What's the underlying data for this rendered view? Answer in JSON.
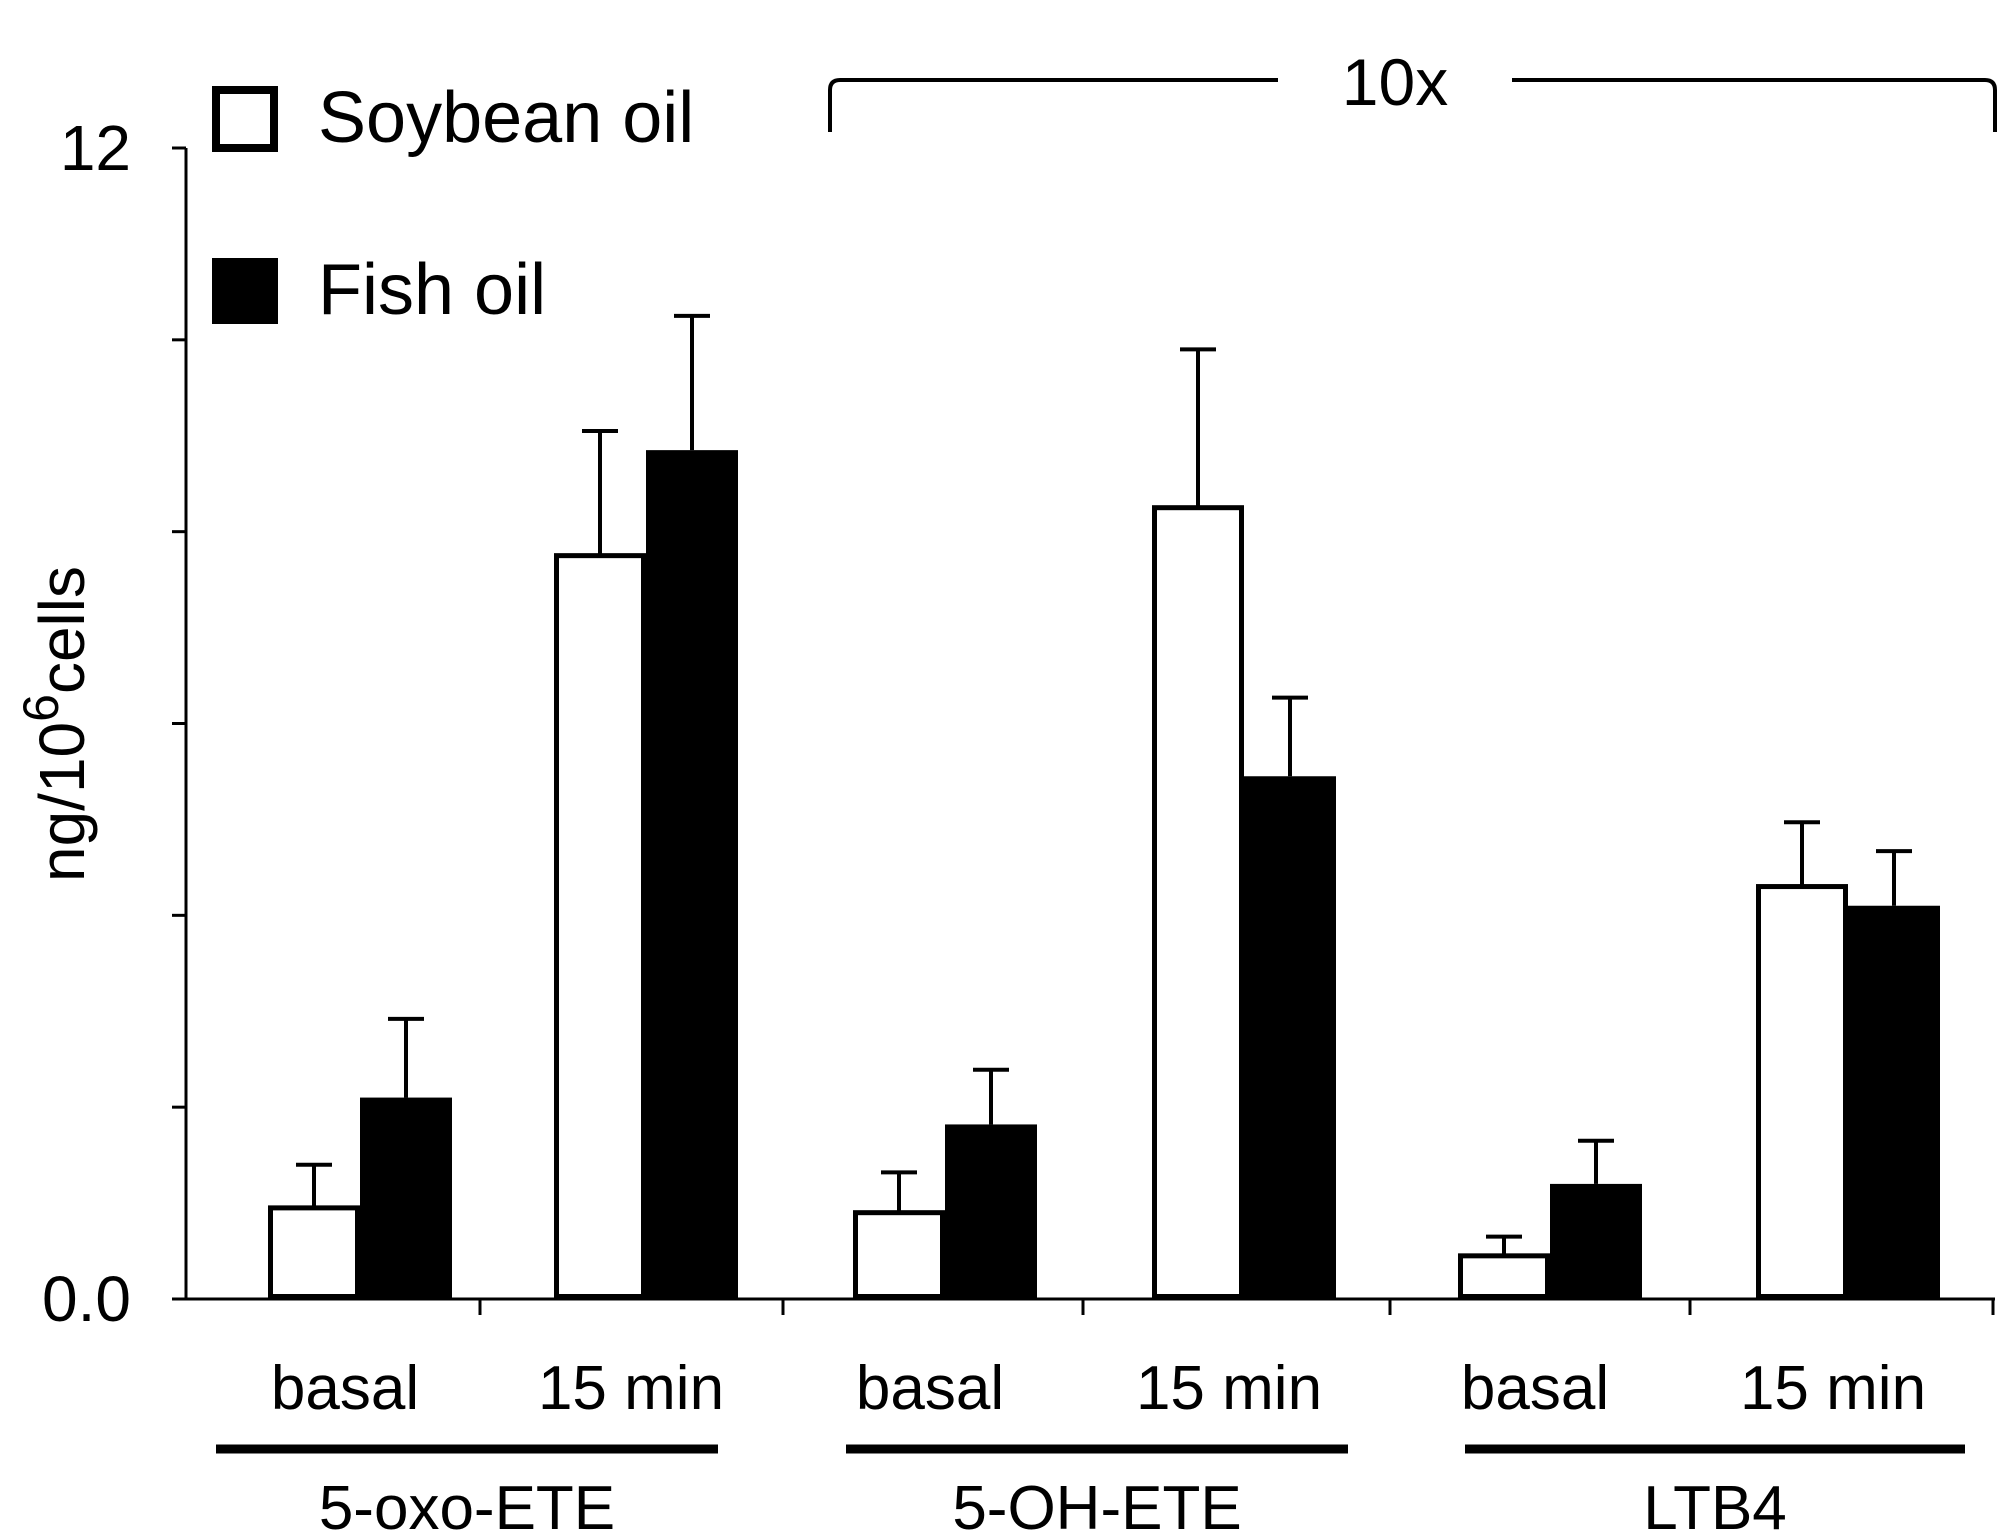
{
  "chart_data": {
    "type": "bar",
    "ylabel": "ng/10",
    "ylabel_superscript": "6",
    "ylabel_suffix": "cells",
    "ylim": [
      0,
      12
    ],
    "yticks_labeled": [
      "0.0",
      "12"
    ],
    "ytick_labels_values": [
      0,
      12
    ],
    "yticks_minor": [
      2,
      4,
      6,
      8,
      10
    ],
    "categories": [
      "basal",
      "15 min",
      "basal",
      "15 min",
      "basal",
      "15 min"
    ],
    "groups": [
      {
        "label": "5-oxo-ETE",
        "categories": [
          0,
          1
        ]
      },
      {
        "label": "5-OH-ETE",
        "categories": [
          2,
          3
        ]
      },
      {
        "label": "LTB4",
        "categories": [
          4,
          5
        ]
      }
    ],
    "series": [
      {
        "name": "Soybean oil",
        "fill": "#ffffff",
        "values": [
          0.95,
          7.75,
          0.9,
          8.25,
          0.45,
          4.3
        ],
        "errors": [
          0.45,
          1.3,
          0.42,
          1.65,
          0.2,
          0.67
        ]
      },
      {
        "name": "Fish oil",
        "fill": "#000000",
        "values": [
          2.1,
          8.85,
          1.82,
          5.45,
          1.2,
          4.1
        ],
        "errors": [
          0.82,
          1.4,
          0.57,
          0.82,
          0.45,
          0.57
        ]
      }
    ],
    "annotation": {
      "text": "10x",
      "spans_categories": [
        2,
        5
      ]
    },
    "legend_placement": "top-left",
    "grid": false
  }
}
